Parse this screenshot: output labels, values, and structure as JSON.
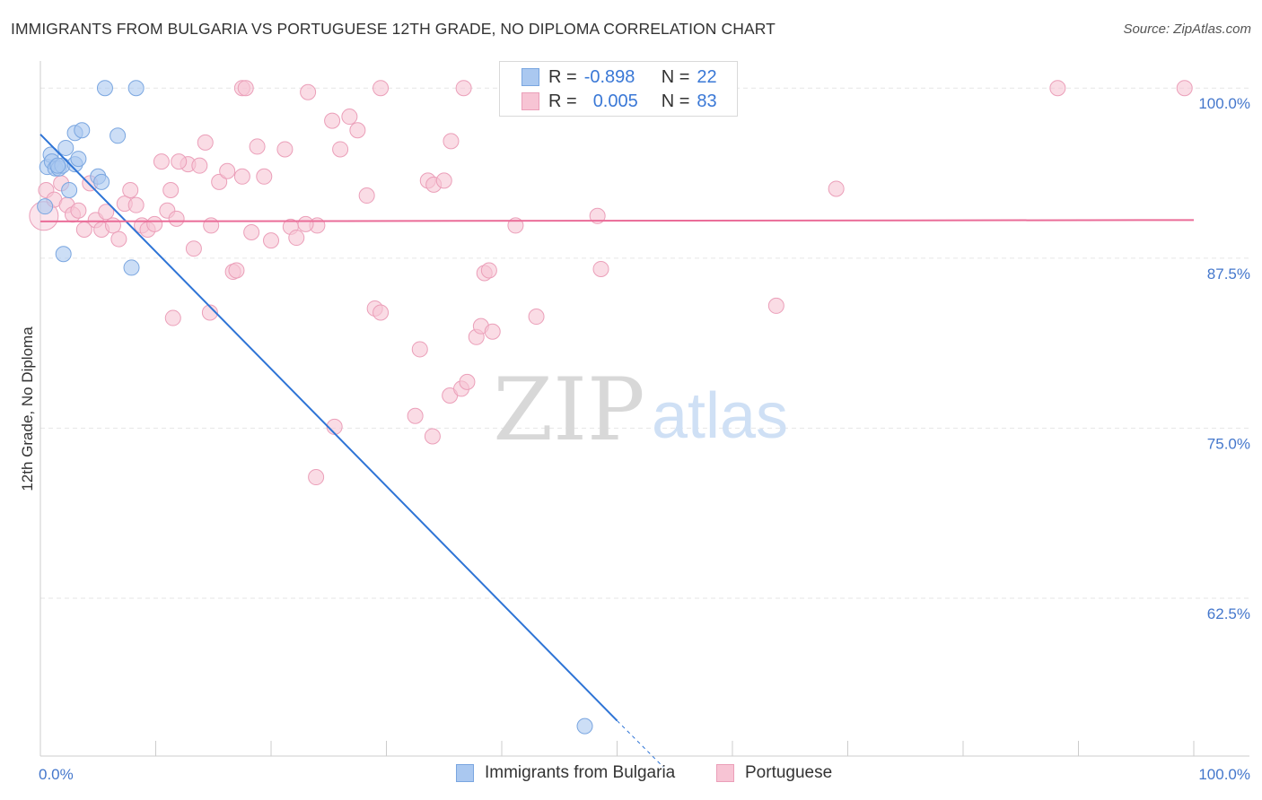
{
  "header": {
    "title": "IMMIGRANTS FROM BULGARIA VS PORTUGUESE 12TH GRADE, NO DIPLOMA CORRELATION CHART",
    "source": "Source: ZipAtlas.com"
  },
  "watermark": {
    "zip": "ZIP",
    "atlas": "atlas"
  },
  "legend_stats": {
    "r_label": "R =",
    "n_label": "N =",
    "series": [
      {
        "name": "Immigrants from Bulgaria",
        "r": "-0.898",
        "n": "22"
      },
      {
        "name": "Portuguese",
        "r": "0.005",
        "n": "83"
      }
    ]
  },
  "bottom_legend": [
    "Immigrants from Bulgaria",
    "Portuguese"
  ],
  "colors": {
    "blue_fill": "#aac8f0",
    "blue_stroke": "#7aa6e0",
    "blue_line": "#2e74d6",
    "pink_fill": "#f7c4d4",
    "pink_stroke": "#eb9fb9",
    "pink_line": "#ea6c98",
    "axis_text": "#4477cc",
    "grid": "#e6e6e6"
  },
  "chart_data": {
    "type": "scatter",
    "title": "IMMIGRANTS FROM BULGARIA VS PORTUGUESE 12TH GRADE, NO DIPLOMA CORRELATION CHART",
    "xlabel": "",
    "ylabel": "12th Grade, No Diploma",
    "xlim": [
      0,
      100
    ],
    "ylim": [
      50.9,
      101.2
    ],
    "x_tick_labels": [
      "0.0%",
      "100.0%"
    ],
    "y_ticks": [
      62.5,
      75.0,
      87.5,
      100.0
    ],
    "y_tick_labels": [
      "62.5%",
      "75.0%",
      "87.5%",
      "100.0%"
    ],
    "grid": true,
    "legend": "top-center",
    "series": [
      {
        "name": "Immigrants from Bulgaria",
        "color": "#aac8f0",
        "points": [
          [
            0.4,
            91.3
          ],
          [
            0.6,
            94.2
          ],
          [
            0.9,
            95.1
          ],
          [
            1.0,
            94.6
          ],
          [
            1.3,
            94.1
          ],
          [
            1.6,
            94.1
          ],
          [
            1.9,
            94.3
          ],
          [
            2.0,
            87.8
          ],
          [
            2.2,
            95.6
          ],
          [
            2.5,
            92.5
          ],
          [
            3.0,
            94.4
          ],
          [
            3.0,
            96.7
          ],
          [
            3.3,
            94.8
          ],
          [
            3.6,
            96.9
          ],
          [
            5.0,
            93.5
          ],
          [
            5.3,
            93.1
          ],
          [
            5.6,
            100.0
          ],
          [
            6.7,
            96.5
          ],
          [
            7.9,
            86.8
          ],
          [
            8.3,
            100.0
          ],
          [
            1.5,
            94.3
          ],
          [
            47.2,
            53.1
          ]
        ],
        "trend": {
          "x": [
            0.0,
            50.0
          ],
          "y": [
            96.6,
            53.5
          ],
          "dashed_extension": {
            "x": [
              50.0,
              54.0
            ],
            "y": [
              53.5,
              50.1
            ]
          }
        }
      },
      {
        "name": "Portuguese",
        "color": "#f7c4d4",
        "points": [
          [
            0.3,
            90.6
          ],
          [
            0.5,
            92.5
          ],
          [
            1.2,
            91.8
          ],
          [
            1.8,
            93.0
          ],
          [
            2.3,
            91.4
          ],
          [
            2.8,
            90.7
          ],
          [
            3.3,
            91.0
          ],
          [
            3.8,
            89.6
          ],
          [
            4.3,
            93.0
          ],
          [
            4.8,
            90.3
          ],
          [
            5.3,
            89.6
          ],
          [
            5.7,
            90.9
          ],
          [
            6.3,
            89.9
          ],
          [
            6.8,
            88.9
          ],
          [
            7.3,
            91.5
          ],
          [
            7.8,
            92.5
          ],
          [
            8.3,
            91.4
          ],
          [
            8.8,
            89.9
          ],
          [
            9.3,
            89.6
          ],
          [
            9.9,
            90.0
          ],
          [
            10.5,
            94.6
          ],
          [
            11.0,
            91.0
          ],
          [
            11.3,
            92.5
          ],
          [
            11.8,
            90.4
          ],
          [
            12.8,
            94.4
          ],
          [
            13.3,
            88.2
          ],
          [
            13.8,
            94.3
          ],
          [
            14.3,
            96.0
          ],
          [
            14.8,
            89.9
          ],
          [
            15.5,
            93.1
          ],
          [
            16.2,
            93.9
          ],
          [
            16.7,
            86.5
          ],
          [
            17.5,
            93.5
          ],
          [
            18.3,
            89.4
          ],
          [
            18.8,
            95.7
          ],
          [
            19.4,
            93.5
          ],
          [
            21.2,
            95.5
          ],
          [
            21.7,
            89.8
          ],
          [
            22.2,
            89.0
          ],
          [
            23.2,
            99.7
          ],
          [
            24.0,
            89.9
          ],
          [
            25.3,
            97.6
          ],
          [
            26.0,
            95.5
          ],
          [
            26.8,
            97.9
          ],
          [
            27.5,
            96.9
          ],
          [
            28.3,
            92.1
          ],
          [
            29.0,
            83.8
          ],
          [
            29.5,
            83.5
          ],
          [
            33.6,
            93.2
          ],
          [
            34.1,
            92.9
          ],
          [
            35.0,
            93.2
          ],
          [
            35.6,
            96.1
          ],
          [
            32.5,
            75.9
          ],
          [
            32.9,
            80.8
          ],
          [
            34.0,
            74.4
          ],
          [
            35.5,
            77.4
          ],
          [
            36.5,
            77.9
          ],
          [
            37.0,
            78.4
          ],
          [
            37.8,
            81.7
          ],
          [
            38.2,
            82.5
          ],
          [
            38.5,
            86.4
          ],
          [
            38.9,
            86.6
          ],
          [
            39.2,
            82.1
          ],
          [
            41.2,
            89.9
          ],
          [
            43.0,
            83.2
          ],
          [
            48.3,
            90.6
          ],
          [
            48.6,
            86.7
          ],
          [
            63.8,
            84.0
          ],
          [
            69.0,
            92.6
          ],
          [
            11.5,
            83.1
          ],
          [
            14.7,
            83.5
          ],
          [
            23.9,
            71.4
          ],
          [
            25.5,
            75.1
          ],
          [
            12.0,
            94.6
          ],
          [
            17.0,
            86.6
          ],
          [
            20.0,
            88.8
          ],
          [
            23.0,
            90.0
          ],
          [
            17.5,
            100.0
          ],
          [
            17.8,
            100.0
          ],
          [
            29.5,
            100.0
          ],
          [
            36.7,
            100.0
          ],
          [
            88.2,
            100.0
          ],
          [
            99.2,
            100.0
          ]
        ],
        "trend": {
          "x": [
            0.0,
            100.0
          ],
          "y": [
            90.2,
            90.3
          ]
        }
      }
    ]
  }
}
